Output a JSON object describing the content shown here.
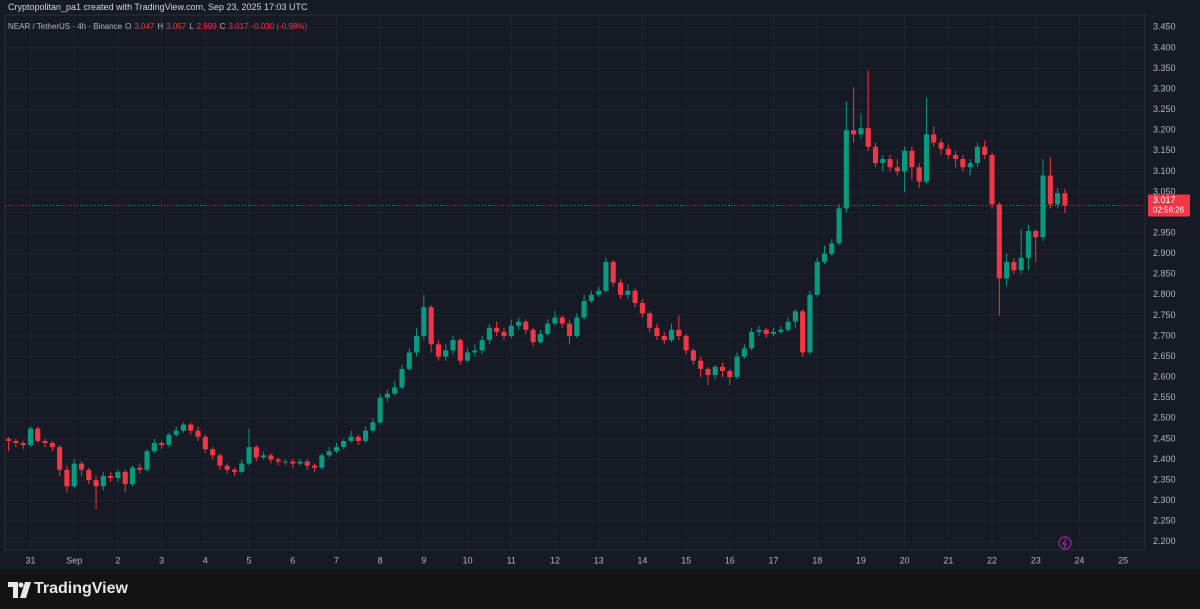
{
  "chart_data": {
    "type": "candlestick",
    "header": "Cryptopolitan_pa1 created with TradingView.com, Sep 23, 2025 17:03 UTC",
    "symbol": "NEAR / TetherUS · 4h · Binance",
    "legend": {
      "open_label": "O",
      "open": 3.047,
      "high_label": "H",
      "high": 3.057,
      "low_label": "L",
      "low": 2.999,
      "close_label": "C",
      "close": 3.017,
      "change": "-0.030 (-0.98%)"
    },
    "countdown": "02:56:26",
    "brand": "TradingView",
    "up_color": "#089981",
    "down_color": "#f23645",
    "grid": true,
    "x": [
      -12,
      -8,
      -4,
      0,
      4,
      8,
      12,
      16,
      20,
      24,
      28,
      32,
      36,
      40,
      44,
      48,
      52,
      56,
      60,
      64,
      68,
      72,
      76,
      80,
      84,
      88,
      92,
      96,
      100,
      104,
      108,
      112,
      116,
      120,
      124,
      128,
      132,
      136,
      140,
      144,
      148,
      152,
      156,
      160,
      164,
      168,
      172,
      176,
      180,
      184,
      188,
      192,
      196,
      200,
      204,
      208,
      212,
      216,
      220,
      224,
      228,
      232,
      236,
      240,
      244,
      248,
      252,
      256,
      260,
      264,
      268,
      272,
      276,
      280,
      284,
      288,
      292,
      296,
      300,
      304,
      308,
      312,
      316,
      320,
      324,
      328,
      332,
      336,
      340,
      344,
      348,
      352,
      356,
      360,
      364,
      368,
      372,
      376,
      380,
      384,
      388,
      392,
      396,
      400,
      404,
      408,
      412,
      416,
      420,
      424,
      428,
      432,
      436,
      440,
      444,
      448,
      452,
      456,
      460,
      464,
      468,
      472,
      476,
      480,
      484,
      488,
      492,
      496,
      500,
      504,
      508,
      512,
      516,
      520,
      524,
      528,
      532,
      536,
      540,
      544,
      548,
      552,
      556,
      560,
      564,
      568
    ],
    "open": [
      2.45,
      2.445,
      2.44,
      2.435,
      2.475,
      2.445,
      2.44,
      2.43,
      2.375,
      2.335,
      2.39,
      2.375,
      2.35,
      2.335,
      2.36,
      2.355,
      2.37,
      2.34,
      2.38,
      2.375,
      2.42,
      2.44,
      2.435,
      2.46,
      2.47,
      2.485,
      2.47,
      2.455,
      2.425,
      2.41,
      2.385,
      2.375,
      2.37,
      2.39,
      2.43,
      2.405,
      2.41,
      2.4,
      2.395,
      2.395,
      2.39,
      2.395,
      2.385,
      2.38,
      2.41,
      2.42,
      2.43,
      2.445,
      2.455,
      2.445,
      2.47,
      2.49,
      2.55,
      2.56,
      2.575,
      2.62,
      2.66,
      2.7,
      2.77,
      2.68,
      2.65,
      2.665,
      2.69,
      2.64,
      2.66,
      2.665,
      2.69,
      2.72,
      2.71,
      2.7,
      2.725,
      2.735,
      2.715,
      2.685,
      2.705,
      2.73,
      2.745,
      2.73,
      2.7,
      2.745,
      2.785,
      2.8,
      2.81,
      2.88,
      2.83,
      2.8,
      2.81,
      2.78,
      2.755,
      2.72,
      2.7,
      2.69,
      2.715,
      2.7,
      2.665,
      2.64,
      2.62,
      2.605,
      2.625,
      2.615,
      2.6,
      2.65,
      2.67,
      2.71,
      2.715,
      2.705,
      2.71,
      2.715,
      2.735,
      2.76,
      2.66,
      2.8,
      2.88,
      2.9,
      2.925,
      3.01,
      3.2,
      3.19,
      3.205,
      3.16,
      3.12,
      3.13,
      3.11,
      3.1,
      3.15,
      3.11,
      3.075,
      3.19,
      3.17,
      3.155,
      3.14,
      3.13,
      3.11,
      3.12,
      3.16,
      3.14,
      3.02,
      2.84,
      2.88,
      2.86,
      2.89,
      2.955,
      2.94,
      3.09,
      3.02,
      3.047
    ],
    "high": [
      2.455,
      2.45,
      2.445,
      2.48,
      2.48,
      2.45,
      2.445,
      2.435,
      2.385,
      2.4,
      2.395,
      2.38,
      2.36,
      2.37,
      2.37,
      2.375,
      2.375,
      2.385,
      2.39,
      2.425,
      2.45,
      2.445,
      2.465,
      2.48,
      2.49,
      2.49,
      2.48,
      2.46,
      2.43,
      2.415,
      2.39,
      2.38,
      2.4,
      2.475,
      2.435,
      2.42,
      2.415,
      2.405,
      2.4,
      2.4,
      2.4,
      2.4,
      2.39,
      2.415,
      2.43,
      2.44,
      2.45,
      2.47,
      2.46,
      2.48,
      2.5,
      2.56,
      2.57,
      2.59,
      2.63,
      2.67,
      2.72,
      2.8,
      2.775,
      2.69,
      2.68,
      2.7,
      2.695,
      2.67,
      2.68,
      2.7,
      2.73,
      2.735,
      2.72,
      2.74,
      2.745,
      2.74,
      2.72,
      2.715,
      2.74,
      2.76,
      2.75,
      2.74,
      2.755,
      2.8,
      2.81,
      2.82,
      2.89,
      2.885,
      2.84,
      2.825,
      2.815,
      2.79,
      2.76,
      2.73,
      2.71,
      2.73,
      2.75,
      2.705,
      2.67,
      2.65,
      2.625,
      2.63,
      2.635,
      2.62,
      2.66,
      2.68,
      2.72,
      2.725,
      2.72,
      2.72,
      2.725,
      2.745,
      2.765,
      2.765,
      2.81,
      2.89,
      2.92,
      2.935,
      3.02,
      3.27,
      3.305,
      3.24,
      3.345,
      3.17,
      3.14,
      3.14,
      3.13,
      3.16,
      3.16,
      3.12,
      3.28,
      3.21,
      3.18,
      3.165,
      3.15,
      3.14,
      3.13,
      3.17,
      3.175,
      3.145,
      3.025,
      2.9,
      2.89,
      2.96,
      2.97,
      2.96,
      3.13,
      3.135,
      3.06,
      3.057
    ],
    "low": [
      2.42,
      2.43,
      2.425,
      2.43,
      2.44,
      2.43,
      2.42,
      2.36,
      2.32,
      2.33,
      2.36,
      2.34,
      2.28,
      2.325,
      2.345,
      2.345,
      2.32,
      2.335,
      2.365,
      2.37,
      2.415,
      2.425,
      2.43,
      2.455,
      2.465,
      2.46,
      2.445,
      2.415,
      2.4,
      2.375,
      2.365,
      2.36,
      2.365,
      2.385,
      2.395,
      2.4,
      2.39,
      2.385,
      2.385,
      2.38,
      2.385,
      2.375,
      2.37,
      2.375,
      2.405,
      2.415,
      2.425,
      2.44,
      2.435,
      2.44,
      2.465,
      2.485,
      2.54,
      2.555,
      2.57,
      2.615,
      2.65,
      2.69,
      2.66,
      2.64,
      2.64,
      2.655,
      2.63,
      2.635,
      2.65,
      2.655,
      2.68,
      2.7,
      2.69,
      2.695,
      2.715,
      2.705,
      2.675,
      2.68,
      2.7,
      2.725,
      2.72,
      2.68,
      2.695,
      2.74,
      2.78,
      2.795,
      2.805,
      2.82,
      2.79,
      2.79,
      2.77,
      2.745,
      2.71,
      2.69,
      2.68,
      2.685,
      2.69,
      2.655,
      2.63,
      2.6,
      2.58,
      2.595,
      2.6,
      2.58,
      2.595,
      2.645,
      2.665,
      2.7,
      2.695,
      2.7,
      2.705,
      2.71,
      2.72,
      2.65,
      2.655,
      2.795,
      2.875,
      2.895,
      2.92,
      3.0,
      3.17,
      3.18,
      3.15,
      3.11,
      3.1,
      3.1,
      3.09,
      3.05,
      3.08,
      3.06,
      3.07,
      3.16,
      3.14,
      3.13,
      3.11,
      3.1,
      3.09,
      3.11,
      3.13,
      3.01,
      2.75,
      2.82,
      2.85,
      2.85,
      2.86,
      2.88,
      2.93,
      3.01,
      3.01,
      2.999
    ],
    "close": [
      2.445,
      2.44,
      2.435,
      2.475,
      2.445,
      2.44,
      2.43,
      2.375,
      2.335,
      2.39,
      2.375,
      2.35,
      2.335,
      2.36,
      2.355,
      2.37,
      2.34,
      2.38,
      2.375,
      2.42,
      2.44,
      2.435,
      2.46,
      2.47,
      2.485,
      2.47,
      2.455,
      2.425,
      2.41,
      2.385,
      2.375,
      2.37,
      2.39,
      2.43,
      2.405,
      2.41,
      2.4,
      2.395,
      2.395,
      2.39,
      2.395,
      2.385,
      2.38,
      2.41,
      2.42,
      2.43,
      2.445,
      2.455,
      2.445,
      2.47,
      2.49,
      2.55,
      2.56,
      2.575,
      2.62,
      2.66,
      2.7,
      2.77,
      2.68,
      2.65,
      2.665,
      2.69,
      2.64,
      2.66,
      2.665,
      2.69,
      2.72,
      2.71,
      2.7,
      2.725,
      2.735,
      2.715,
      2.685,
      2.705,
      2.73,
      2.745,
      2.73,
      2.7,
      2.745,
      2.785,
      2.8,
      2.81,
      2.88,
      2.83,
      2.8,
      2.81,
      2.78,
      2.755,
      2.72,
      2.7,
      2.69,
      2.715,
      2.7,
      2.665,
      2.64,
      2.62,
      2.605,
      2.625,
      2.615,
      2.6,
      2.65,
      2.67,
      2.71,
      2.715,
      2.705,
      2.71,
      2.715,
      2.735,
      2.76,
      2.66,
      2.8,
      2.88,
      2.9,
      2.925,
      3.01,
      3.2,
      3.19,
      3.205,
      3.16,
      3.12,
      3.13,
      3.11,
      3.1,
      3.15,
      3.11,
      3.075,
      3.19,
      3.17,
      3.155,
      3.14,
      3.13,
      3.11,
      3.12,
      3.16,
      3.14,
      3.02,
      2.84,
      2.88,
      2.86,
      2.89,
      2.955,
      2.94,
      3.09,
      3.02,
      3.047,
      3.017
    ],
    "xlim": [
      -14,
      612
    ],
    "xticks": [
      {
        "value": 0,
        "label": "31"
      },
      {
        "value": 24,
        "label": "Sep"
      },
      {
        "value": 48,
        "label": "2"
      },
      {
        "value": 72,
        "label": "3"
      },
      {
        "value": 96,
        "label": "4"
      },
      {
        "value": 120,
        "label": "5"
      },
      {
        "value": 144,
        "label": "6"
      },
      {
        "value": 168,
        "label": "7"
      },
      {
        "value": 192,
        "label": "8"
      },
      {
        "value": 216,
        "label": "9"
      },
      {
        "value": 240,
        "label": "10"
      },
      {
        "value": 264,
        "label": "11"
      },
      {
        "value": 288,
        "label": "12"
      },
      {
        "value": 312,
        "label": "13"
      },
      {
        "value": 336,
        "label": "14"
      },
      {
        "value": 360,
        "label": "15"
      },
      {
        "value": 384,
        "label": "16"
      },
      {
        "value": 408,
        "label": "17"
      },
      {
        "value": 432,
        "label": "18"
      },
      {
        "value": 456,
        "label": "19"
      },
      {
        "value": 480,
        "label": "20"
      },
      {
        "value": 504,
        "label": "21"
      },
      {
        "value": 528,
        "label": "22"
      },
      {
        "value": 552,
        "label": "23"
      },
      {
        "value": 576,
        "label": "24"
      },
      {
        "value": 600,
        "label": "25"
      }
    ],
    "ylim": [
      2.18,
      3.48
    ],
    "yticks": [
      {
        "value": 2.2,
        "label": "2.200"
      },
      {
        "value": 2.25,
        "label": "2.250"
      },
      {
        "value": 2.3,
        "label": "2.300"
      },
      {
        "value": 2.35,
        "label": "2.350"
      },
      {
        "value": 2.4,
        "label": "2.400"
      },
      {
        "value": 2.45,
        "label": "2.450"
      },
      {
        "value": 2.5,
        "label": "2.500"
      },
      {
        "value": 2.55,
        "label": "2.550"
      },
      {
        "value": 2.6,
        "label": "2.600"
      },
      {
        "value": 2.65,
        "label": "2.650"
      },
      {
        "value": 2.7,
        "label": "2.700"
      },
      {
        "value": 2.75,
        "label": "2.750"
      },
      {
        "value": 2.8,
        "label": "2.800"
      },
      {
        "value": 2.85,
        "label": "2.850"
      },
      {
        "value": 2.9,
        "label": "2.900"
      },
      {
        "value": 2.95,
        "label": "2.950"
      },
      {
        "value": 3.0,
        "label": "3.000"
      },
      {
        "value": 3.05,
        "label": "3.050"
      },
      {
        "value": 3.1,
        "label": "3.100"
      },
      {
        "value": 3.15,
        "label": "3.150"
      },
      {
        "value": 3.2,
        "label": "3.200"
      },
      {
        "value": 3.25,
        "label": "3.250"
      },
      {
        "value": 3.3,
        "label": "3.300"
      },
      {
        "value": 3.35,
        "label": "3.350"
      },
      {
        "value": 3.4,
        "label": "3.400"
      },
      {
        "value": 3.45,
        "label": "3.450"
      }
    ]
  }
}
